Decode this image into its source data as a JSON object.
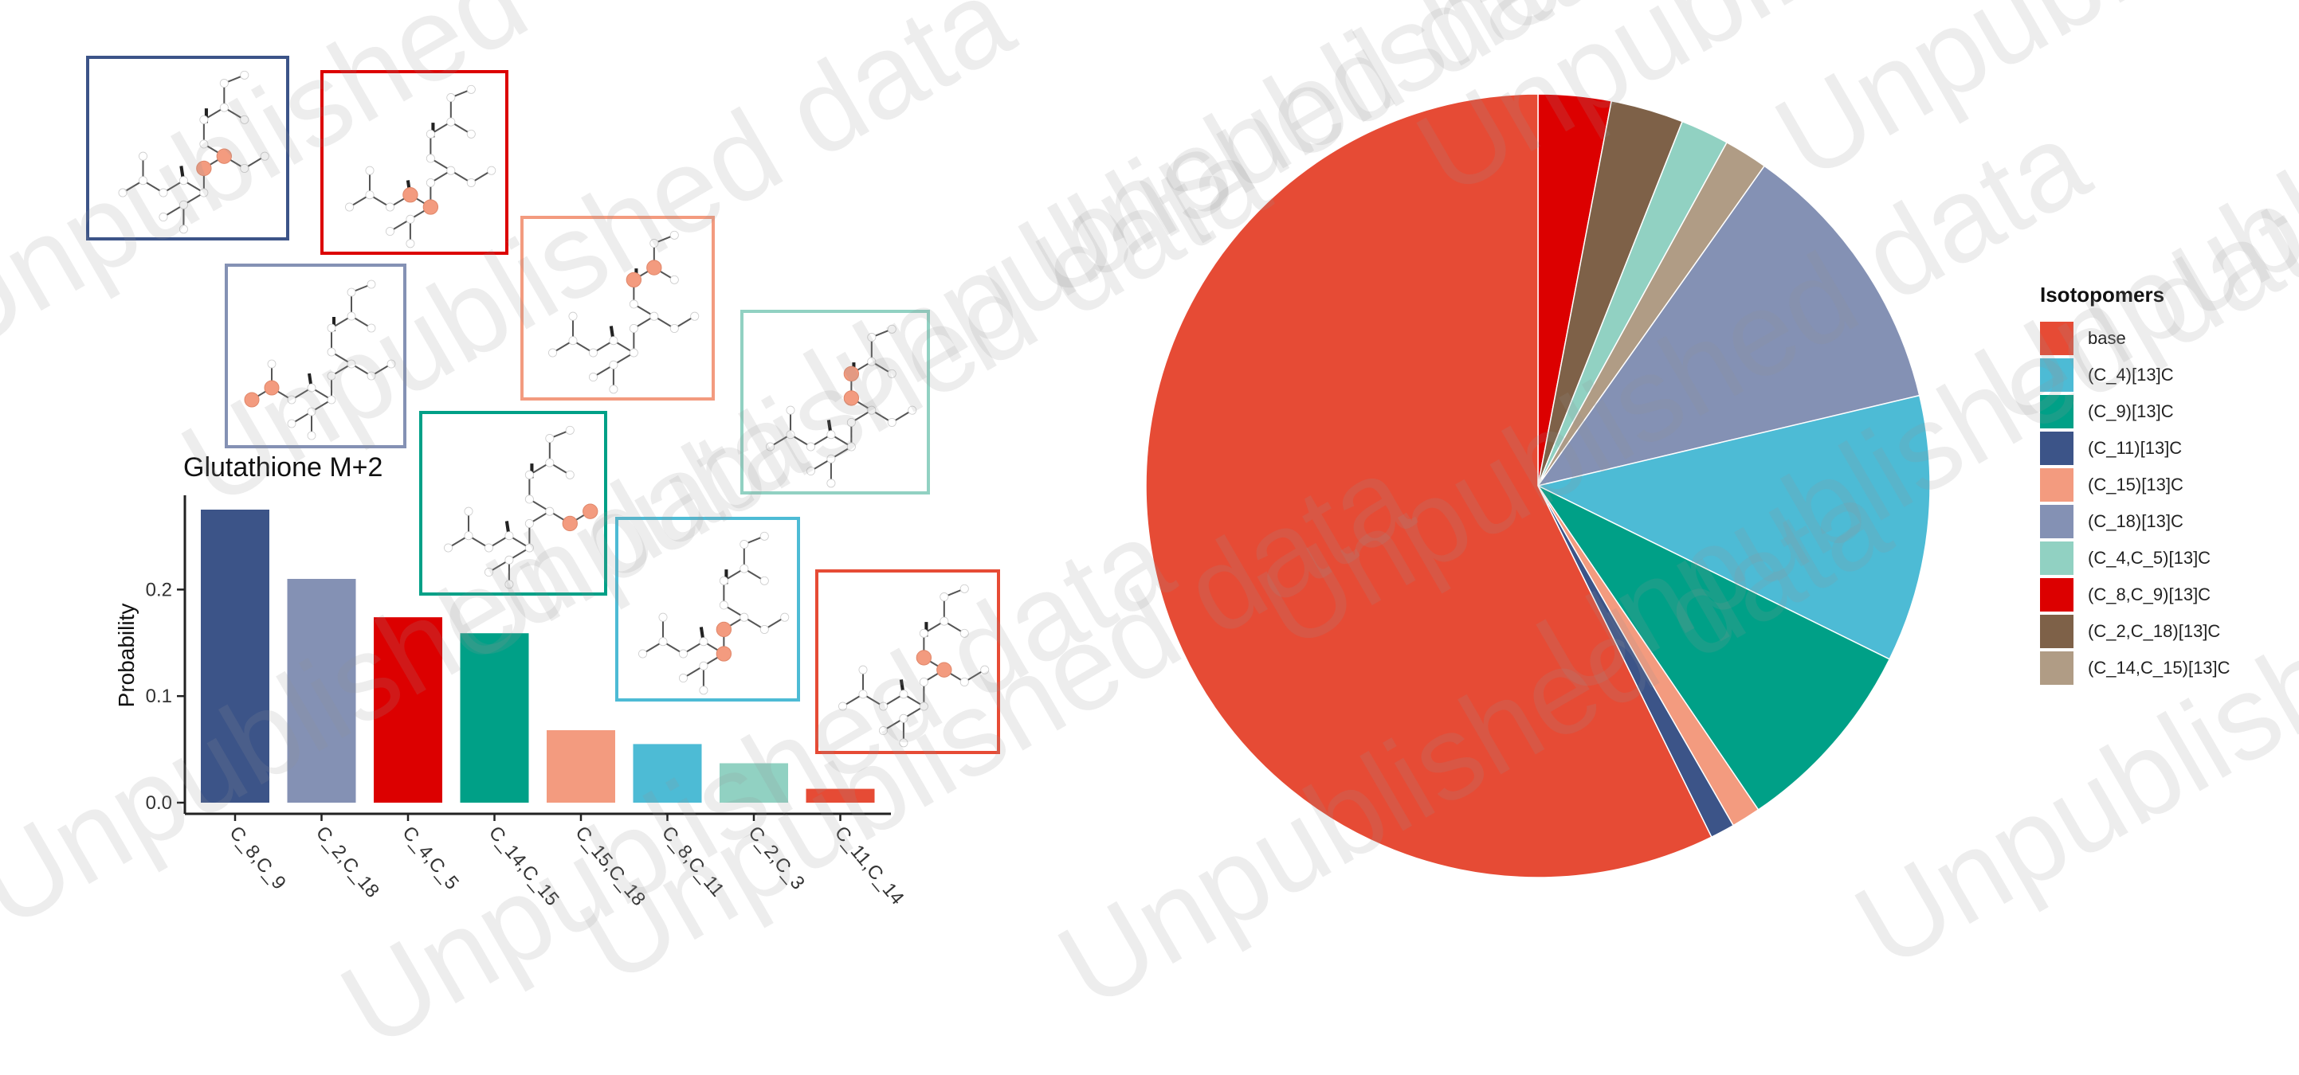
{
  "chart_data": [
    {
      "type": "bar",
      "title": "Glutathione M+2",
      "xlabel": "",
      "ylabel": "Probability",
      "ylim": [
        0,
        0.28
      ],
      "yticks": [
        0.0,
        0.1,
        0.2
      ],
      "ytick_labels": [
        "0.0",
        "0.1",
        "0.2"
      ],
      "categories": [
        "C_8,C_9",
        "C_2,C_18",
        "C_4,C_5",
        "C_14,C_15",
        "C_15,C_18",
        "C_8,C_11",
        "C_2,C_3",
        "C_11,C_14"
      ],
      "values": [
        0.275,
        0.21,
        0.174,
        0.159,
        0.068,
        0.055,
        0.037,
        0.013
      ],
      "colors": [
        "#3C5488",
        "#8491B4",
        "#DC0000",
        "#00A087",
        "#F39B7F",
        "#4DBBD5",
        "#91D1C2",
        "#E64B35"
      ],
      "grid": false
    },
    {
      "type": "pie",
      "legend_title": "Isotopomers",
      "legend_position": "right",
      "labels": [
        "base",
        "(C_4)[13]C",
        "(C_9)[13]C",
        "(C_11)[13]C",
        "(C_15)[13]C",
        "(C_18)[13]C",
        "(C_4,C_5)[13]C",
        "(C_8,C_9)[13]C",
        "(C_2,C_18)[13]C",
        "(C_14,C_15)[13]C"
      ],
      "legend_colors": [
        "#E64B35",
        "#4DBBD5",
        "#00A087",
        "#3C5488",
        "#F39B7F",
        "#8491B4",
        "#91D1C2",
        "#DC0000",
        "#7E6148",
        "#B09C85"
      ],
      "slice_order_clockwise_from_top": [
        "(C_8,C_9)[13]C",
        "(C_2,C_18)[13]C",
        "(C_4,C_5)[13]C",
        "(C_14,C_15)[13]C",
        "(C_18)[13]C",
        "(C_4)[13]C",
        "(C_9)[13]C",
        "(C_15)[13]C",
        "(C_11)[13]C",
        "base"
      ],
      "values": [
        0.03,
        0.03,
        0.02,
        0.018,
        0.115,
        0.11,
        0.082,
        0.012,
        0.01,
        0.573
      ]
    }
  ],
  "watermark": "Unpublished data",
  "structures": [
    {
      "highlight_color": "#F39B7F",
      "border_color": "#3C5488"
    },
    {
      "highlight_color": "#F39B7F",
      "border_color": "#DC0000"
    },
    {
      "highlight_color": "#F39B7F",
      "border_color": "#8491B4"
    },
    {
      "highlight_color": "#F39B7F",
      "border_color": "#F39B7F"
    },
    {
      "highlight_color": "#F39B7F",
      "border_color": "#00A087"
    },
    {
      "highlight_color": "#F39B7F",
      "border_color": "#91D1C2"
    },
    {
      "highlight_color": "#F39B7F",
      "border_color": "#4DBBD5"
    },
    {
      "highlight_color": "#F39B7F",
      "border_color": "#E64B35"
    }
  ]
}
